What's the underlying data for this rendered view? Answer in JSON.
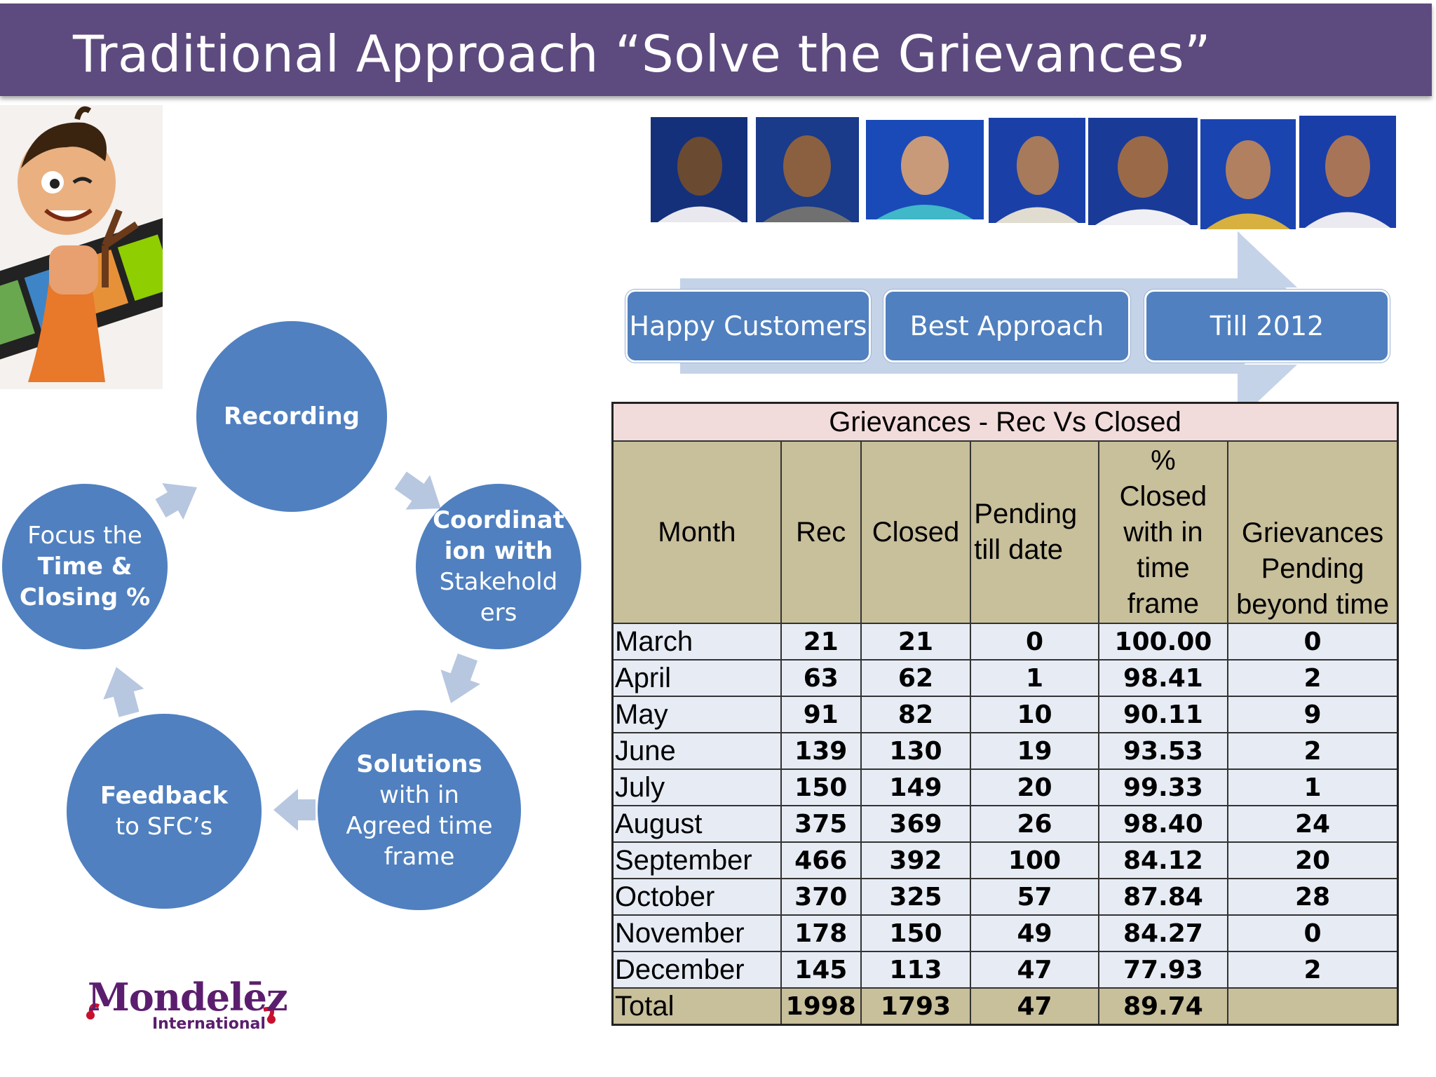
{
  "slide": {
    "title": "Traditional Approach “Solve the Grievances”"
  },
  "cycle": {
    "recording": "Recording",
    "coordination": [
      "Coordinat",
      "ion with",
      "Stakehold",
      "ers"
    ],
    "solutions": [
      "Solutions",
      "with in",
      "Agreed time",
      "frame"
    ],
    "feedback": [
      "Feedback",
      "to SFC’s"
    ],
    "focus": [
      "Focus the",
      "Time &",
      "Closing %"
    ]
  },
  "process": {
    "steps": [
      "Happy Customers",
      "Best Approach",
      "Till 2012"
    ]
  },
  "table": {
    "caption": "Grievances - Rec Vs Closed",
    "headers": {
      "month": "Month",
      "rec": "Rec",
      "closed": "Closed",
      "pending": [
        "Pending",
        "till date"
      ],
      "pct": [
        "%",
        "Closed",
        "with in",
        "time",
        "frame"
      ],
      "beyond": [
        "Grievances",
        "Pending",
        "beyond time"
      ]
    },
    "rows": [
      {
        "month": "March",
        "rec": "21",
        "closed": "21",
        "pending": "0",
        "pct": "100.00",
        "beyond": "0"
      },
      {
        "month": "April",
        "rec": "63",
        "closed": "62",
        "pending": "1",
        "pct": "98.41",
        "beyond": "2"
      },
      {
        "month": "May",
        "rec": "91",
        "closed": "82",
        "pending": "10",
        "pct": "90.11",
        "beyond": "9"
      },
      {
        "month": "June",
        "rec": "139",
        "closed": "130",
        "pending": "19",
        "pct": "93.53",
        "beyond": "2"
      },
      {
        "month": "July",
        "rec": "150",
        "closed": "149",
        "pending": "20",
        "pct": "99.33",
        "beyond": "1"
      },
      {
        "month": "August",
        "rec": "375",
        "closed": "369",
        "pending": "26",
        "pct": "98.40",
        "beyond": "24"
      },
      {
        "month": "September",
        "rec": "466",
        "closed": "392",
        "pending": "100",
        "pct": "84.12",
        "beyond": "20"
      },
      {
        "month": "October",
        "rec": "370",
        "closed": "325",
        "pending": "57",
        "pct": "87.84",
        "beyond": "28"
      },
      {
        "month": "November",
        "rec": "178",
        "closed": "150",
        "pending": "49",
        "pct": "84.27",
        "beyond": "0"
      },
      {
        "month": "December",
        "rec": "145",
        "closed": "113",
        "pending": "47",
        "pct": "77.93",
        "beyond": "2"
      }
    ],
    "total": {
      "month": "Total",
      "rec": "1998",
      "closed": "1793",
      "pending": "47",
      "pct": "89.74",
      "beyond": ""
    }
  },
  "logo": {
    "name": "Mondelēz",
    "sub": "International"
  },
  "colors": {
    "title_bar": "#5d4a7e",
    "circle": "#5080bf",
    "arrow_light": "#c5d3e8",
    "table_header": "#c8bf9b",
    "table_caption": "#f2dcdb",
    "table_row": "#e6ebf4",
    "logo": "#5b1e6e"
  }
}
